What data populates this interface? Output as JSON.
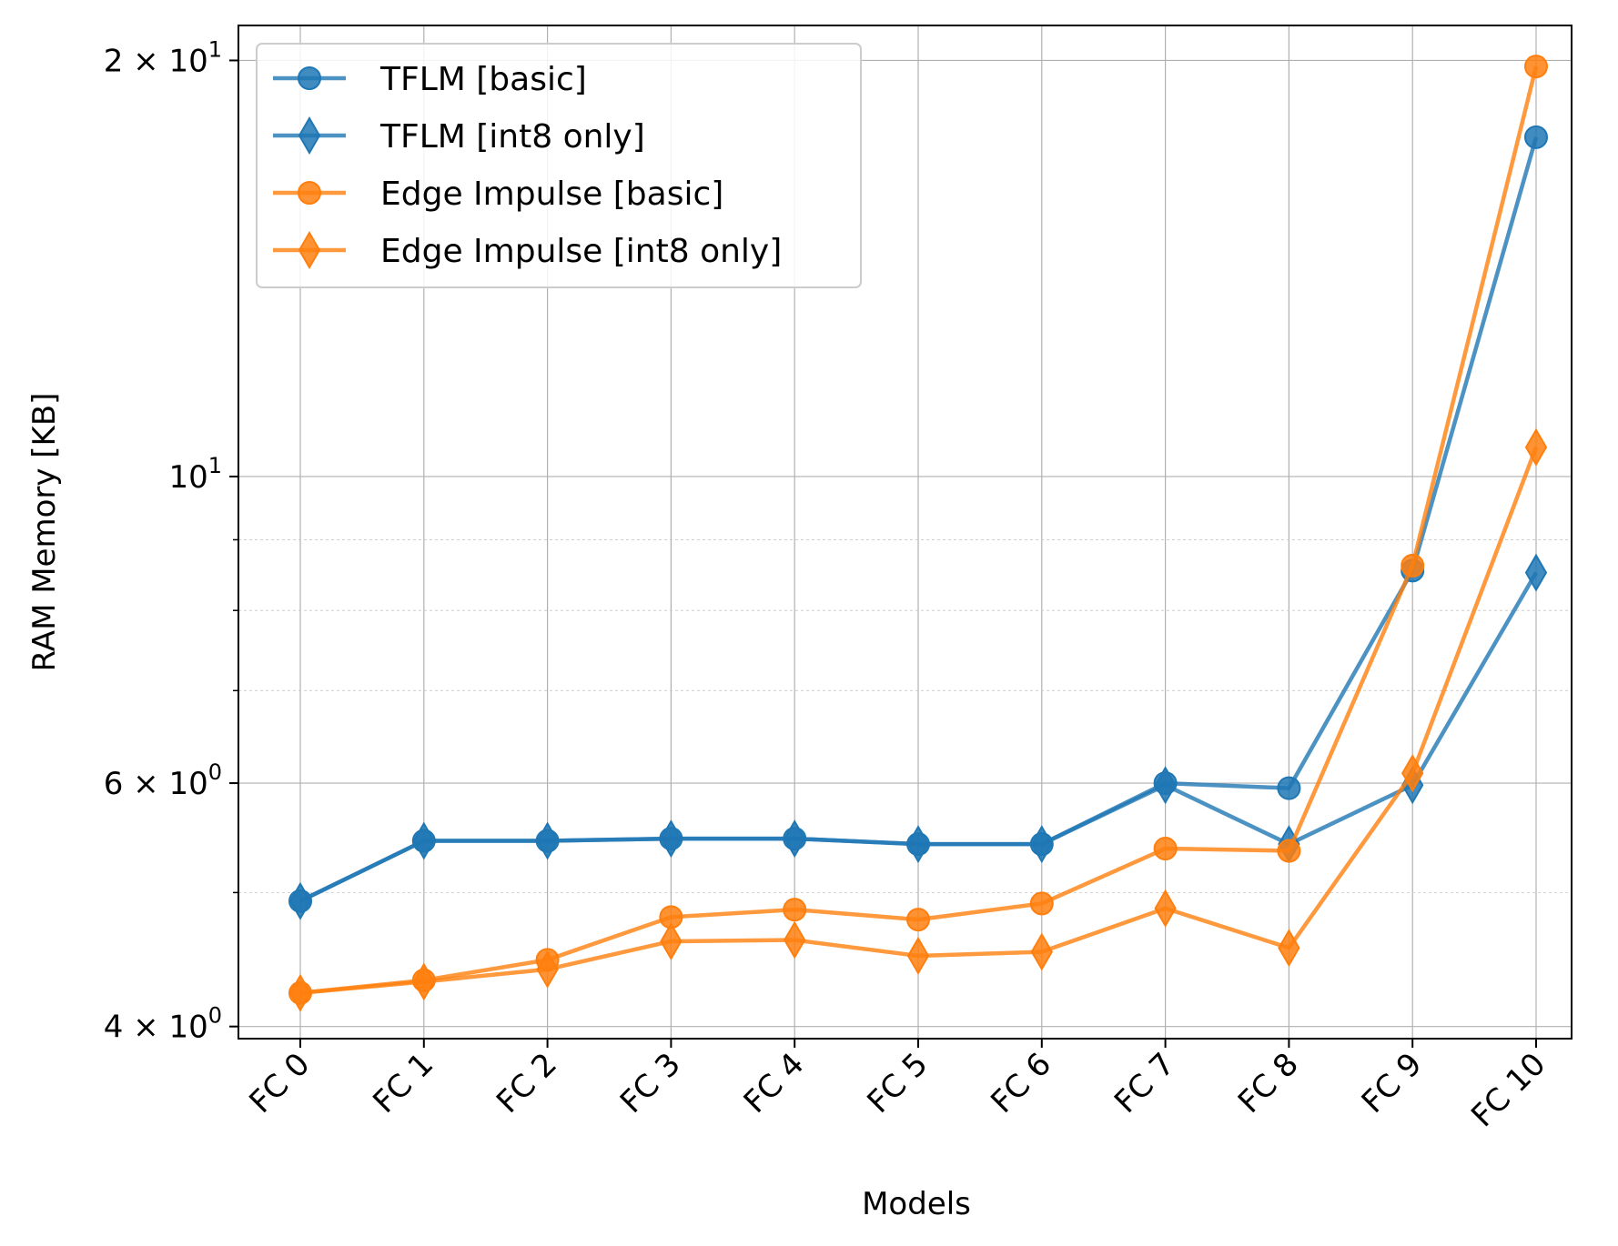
{
  "chart_data": {
    "type": "line",
    "title": "",
    "xlabel": "Models",
    "ylabel": "RAM Memory [KB]",
    "y_scale": "log",
    "ylim": [
      3.92,
      21.2
    ],
    "y_major_ticks": [
      {
        "value": 4,
        "mantissa": "4",
        "base": "10",
        "exp": "0"
      },
      {
        "value": 6,
        "mantissa": "6",
        "base": "10",
        "exp": "0"
      },
      {
        "value": 10,
        "mantissa": "",
        "base": "10",
        "exp": "1"
      },
      {
        "value": 20,
        "mantissa": "2",
        "base": "10",
        "exp": "1"
      }
    ],
    "y_minor_ticks": [
      5,
      7,
      8,
      9
    ],
    "grid": true,
    "legend_position": "top-left",
    "categories": [
      "FC 0",
      "FC 1",
      "FC 2",
      "FC 3",
      "FC 4",
      "FC 5",
      "FC 6",
      "FC 7",
      "FC 8",
      "FC 9",
      "FC 10"
    ],
    "series": [
      {
        "name": "TFLM [basic]",
        "color": "#1f77b4",
        "marker": "circle",
        "values": [
          4.93,
          5.45,
          5.45,
          5.47,
          5.47,
          5.42,
          5.42,
          6.0,
          5.95,
          8.55,
          17.6
        ]
      },
      {
        "name": "TFLM [int8 only]",
        "color": "#1f77b4",
        "marker": "diamond",
        "values": [
          4.93,
          5.45,
          5.45,
          5.47,
          5.47,
          5.42,
          5.42,
          5.98,
          5.42,
          5.98,
          8.52
        ]
      },
      {
        "name": "Edge Impulse [basic]",
        "color": "#ff7f0e",
        "marker": "circle",
        "values": [
          4.23,
          4.32,
          4.47,
          4.8,
          4.86,
          4.78,
          4.91,
          5.38,
          5.36,
          8.62,
          19.8
        ]
      },
      {
        "name": "Edge Impulse [int8 only]",
        "color": "#ff7f0e",
        "marker": "diamond",
        "values": [
          4.23,
          4.31,
          4.4,
          4.61,
          4.62,
          4.5,
          4.53,
          4.87,
          4.56,
          6.1,
          10.5
        ]
      }
    ]
  }
}
